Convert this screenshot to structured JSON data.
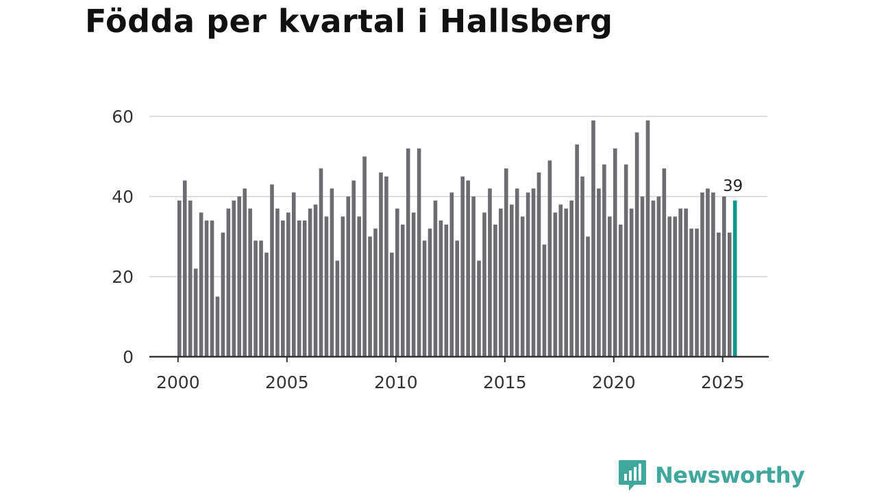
{
  "title": "Födda per kvartal i Hallsberg",
  "brand": {
    "name": "Newsworthy",
    "color": "#3fa79c"
  },
  "chart_data": {
    "type": "bar",
    "title": "Födda per kvartal i Hallsberg",
    "xlabel": "",
    "ylabel": "",
    "ylim": [
      0,
      65
    ],
    "yticks": [
      0,
      20,
      40,
      60
    ],
    "xticks": [
      "2000",
      "2005",
      "2010",
      "2015",
      "2020",
      "2025"
    ],
    "start_year": 2000,
    "bar_color": "#6d6c71",
    "highlight_color": "#11988c",
    "highlight_label": "39",
    "grid": true,
    "series": [
      {
        "name": "Födda",
        "values": [
          39,
          44,
          39,
          22,
          36,
          34,
          34,
          15,
          31,
          37,
          39,
          40,
          42,
          37,
          29,
          29,
          26,
          43,
          37,
          34,
          36,
          41,
          34,
          34,
          37,
          38,
          47,
          35,
          42,
          24,
          35,
          40,
          44,
          35,
          50,
          30,
          32,
          46,
          45,
          26,
          37,
          33,
          52,
          36,
          52,
          29,
          32,
          39,
          34,
          33,
          41,
          29,
          45,
          44,
          40,
          24,
          36,
          42,
          33,
          37,
          47,
          38,
          42,
          35,
          41,
          42,
          46,
          28,
          49,
          36,
          38,
          37,
          39,
          53,
          45,
          30,
          59,
          42,
          48,
          35,
          52,
          33,
          48,
          37,
          56,
          40,
          59,
          39,
          40,
          47,
          35,
          35,
          37,
          37,
          32,
          32,
          41,
          42,
          41,
          31,
          40,
          31,
          39
        ]
      }
    ]
  }
}
